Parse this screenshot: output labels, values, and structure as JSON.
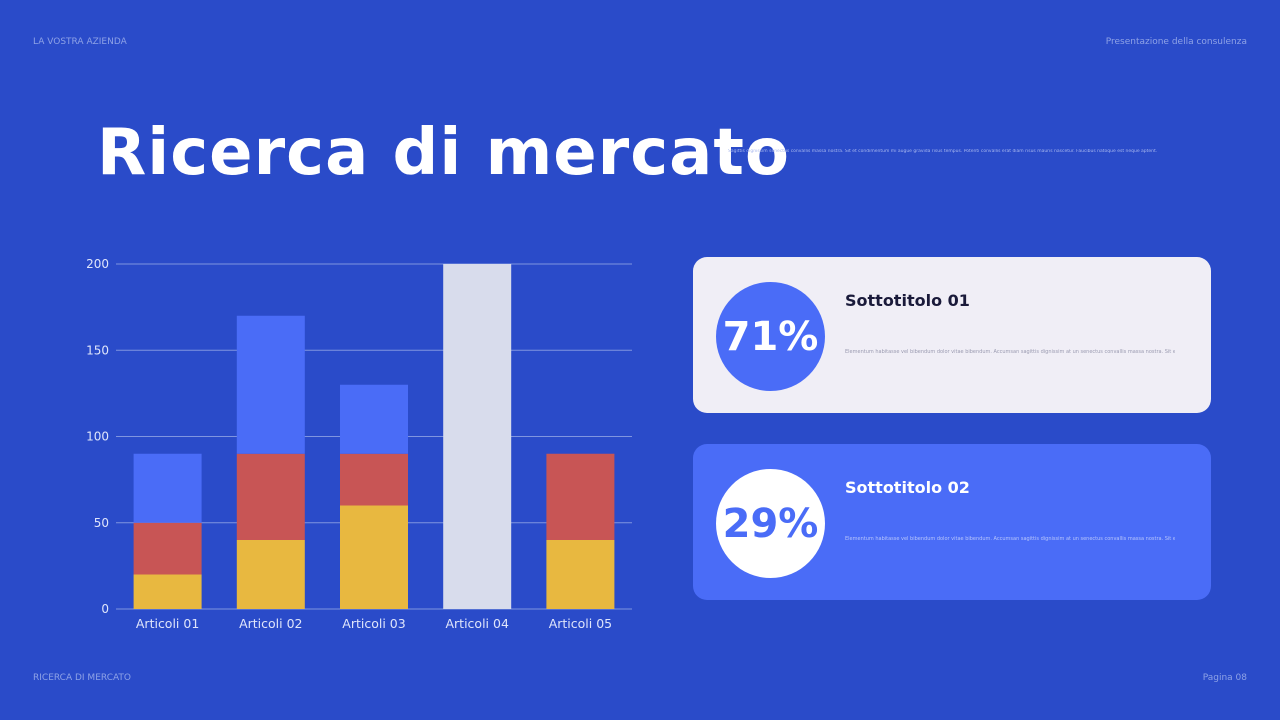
{
  "header": {
    "company": "LA VOSTRA AZIENDA",
    "presentation": "Presentazione della consulenza"
  },
  "title": "Ricerca di mercato",
  "intro_text": "Sagittis dignissim senectus convallis massa nostra. Sit et condimentum mi augue gravida risus tempus. Potenti convallis erat diam risus mauris nascetur. Faucibus natoque est neque aptent.",
  "footer": {
    "section": "RICERCA DI MERCATO",
    "page": "Pagina 08"
  },
  "colors": {
    "background": "#2a4bc9",
    "blue": "#4a6cf7",
    "red": "#c85555",
    "yellow": "#e8b840",
    "gray": "#d8dcec"
  },
  "chart_data": {
    "type": "bar",
    "stacked": true,
    "categories": [
      "Articoli 01",
      "Articoli 02",
      "Articoli 03",
      "Articoli 04",
      "Articoli 05"
    ],
    "series": [
      {
        "color": "#e8b840",
        "values": [
          20,
          40,
          60,
          0,
          40
        ]
      },
      {
        "color": "#c85555",
        "values": [
          30,
          50,
          30,
          0,
          50
        ]
      },
      {
        "color": "#4a6cf7",
        "values": [
          40,
          80,
          40,
          0,
          0
        ]
      },
      {
        "color": "#d8dcec",
        "values": [
          0,
          0,
          0,
          200,
          0
        ]
      }
    ],
    "ylim": [
      0,
      200
    ],
    "yticks": [
      0,
      50,
      100,
      150,
      200
    ],
    "grid": true
  },
  "cards": [
    {
      "percent": "71%",
      "subtitle": "Sottotitolo 01",
      "text": "Elementum habitasse vel bibendum dolor vitae bibendum. Accumsan sagittis dignissim at un senectus convallis massa nostra. Sit et"
    },
    {
      "percent": "29%",
      "subtitle": "Sottotitolo 02",
      "text": "Elementum habitasse vel bibendum dolor vitae bibendum. Accumsan sagittis dignissim at un senectus convallis massa nostra. Sit et"
    }
  ]
}
